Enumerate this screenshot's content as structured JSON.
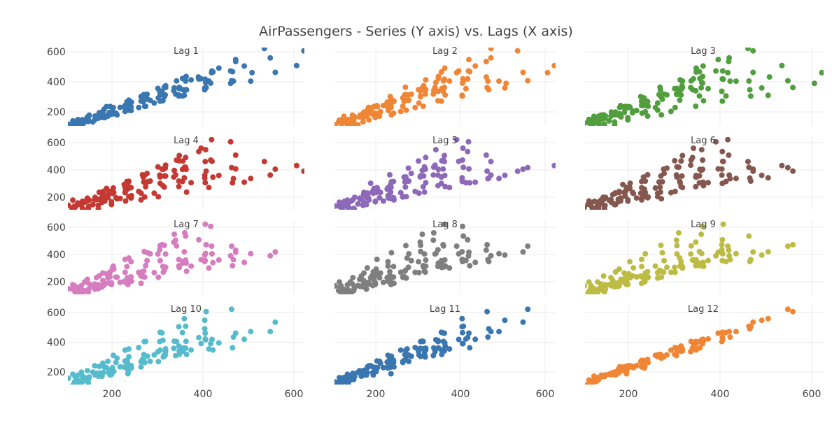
{
  "chart_data": {
    "type": "scatter",
    "title": "AirPassengers - Series (Y axis) vs. Lags (X axis)",
    "xlabel": "",
    "ylabel": "",
    "xlim": [
      105,
      622
    ],
    "ylim": [
      120,
      625
    ],
    "x_ticks": [
      "200",
      "400",
      "600"
    ],
    "y_ticks": [
      "200",
      "400",
      "600"
    ],
    "grid": true,
    "legend": "none",
    "series_values": [
      112,
      118,
      132,
      129,
      121,
      135,
      148,
      148,
      136,
      119,
      104,
      118,
      115,
      126,
      141,
      135,
      125,
      149,
      170,
      170,
      158,
      133,
      114,
      140,
      145,
      150,
      178,
      163,
      172,
      178,
      199,
      199,
      184,
      162,
      146,
      166,
      171,
      180,
      193,
      181,
      183,
      218,
      230,
      242,
      209,
      191,
      172,
      194,
      196,
      196,
      236,
      235,
      229,
      243,
      264,
      272,
      237,
      211,
      180,
      201,
      204,
      188,
      235,
      227,
      234,
      264,
      302,
      293,
      259,
      229,
      203,
      229,
      242,
      233,
      267,
      269,
      270,
      315,
      364,
      347,
      312,
      274,
      237,
      278,
      284,
      277,
      317,
      313,
      318,
      374,
      413,
      405,
      355,
      306,
      271,
      306,
      315,
      301,
      356,
      348,
      355,
      422,
      465,
      467,
      404,
      347,
      305,
      336,
      340,
      318,
      362,
      348,
      363,
      435,
      491,
      505,
      404,
      359,
      310,
      337,
      360,
      342,
      406,
      396,
      420,
      472,
      548,
      559,
      463,
      407,
      362,
      405,
      417,
      391,
      419,
      461,
      472,
      535,
      622,
      606,
      508,
      461,
      390,
      432
    ],
    "panels": [
      {
        "name": "Lag 1",
        "lag": 1,
        "color": "#3a76af"
      },
      {
        "name": "Lag 2",
        "lag": 2,
        "color": "#ef8636"
      },
      {
        "name": "Lag 3",
        "lag": 3,
        "color": "#519e3e"
      },
      {
        "name": "Lag 4",
        "lag": 4,
        "color": "#c43932"
      },
      {
        "name": "Lag 5",
        "lag": 5,
        "color": "#8d69b8"
      },
      {
        "name": "Lag 6",
        "lag": 6,
        "color": "#84584e"
      },
      {
        "name": "Lag 7",
        "lag": 7,
        "color": "#d57dbe"
      },
      {
        "name": "Lag 8",
        "lag": 8,
        "color": "#7f7f7f"
      },
      {
        "name": "Lag 9",
        "lag": 9,
        "color": "#bcbc45"
      },
      {
        "name": "Lag 10",
        "lag": 10,
        "color": "#56bbcc"
      },
      {
        "name": "Lag 11",
        "lag": 11,
        "color": "#3a76af"
      },
      {
        "name": "Lag 12",
        "lag": 12,
        "color": "#ef8636"
      }
    ]
  }
}
